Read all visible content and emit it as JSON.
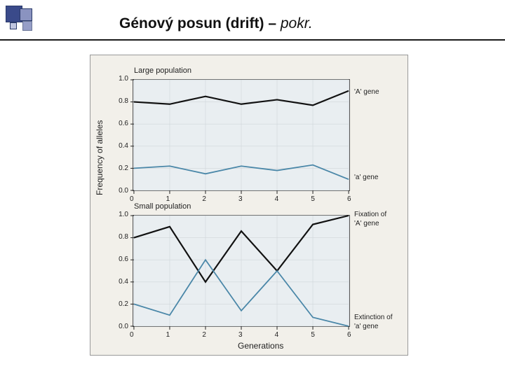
{
  "title_bold": "Génový posun (drift)",
  "title_sep": " – ",
  "title_italic": "pokr.",
  "ylabel": "Frequency of alleles",
  "xlabel": "Generations",
  "panel1": {
    "title": "Large population",
    "ylim": [
      0.0,
      1.0
    ],
    "yticks": [
      0.0,
      0.2,
      0.4,
      0.6,
      0.8,
      1.0
    ],
    "yticklabels": [
      "0.0",
      "0.2",
      "0.4",
      "0.6",
      "0.8",
      "1.0"
    ],
    "xlim": [
      0,
      6
    ],
    "xticks": [
      0,
      1,
      2,
      3,
      4,
      5,
      6
    ],
    "xticklabels": [
      "0",
      "1",
      "2",
      "3",
      "4",
      "5",
      "6"
    ],
    "grid_color": "#d0d6da",
    "background_color": "#e9eef1",
    "series": [
      {
        "name": "A_gene",
        "color": "#111111",
        "width": 2.2,
        "x": [
          0,
          1,
          2,
          3,
          4,
          5,
          6
        ],
        "y": [
          0.8,
          0.78,
          0.85,
          0.78,
          0.82,
          0.77,
          0.9
        ]
      },
      {
        "name": "a_gene",
        "color": "#4a87a8",
        "width": 1.8,
        "x": [
          0,
          1,
          2,
          3,
          4,
          5,
          6
        ],
        "y": [
          0.2,
          0.22,
          0.15,
          0.22,
          0.18,
          0.23,
          0.1
        ]
      }
    ],
    "right_labels": [
      {
        "text": "'A' gene",
        "y": 0.88
      },
      {
        "text": "'a' gene",
        "y": 0.12
      }
    ]
  },
  "panel2": {
    "title": "Small population",
    "ylim": [
      0.0,
      1.0
    ],
    "yticks": [
      0.0,
      0.2,
      0.4,
      0.6,
      0.8,
      1.0
    ],
    "yticklabels": [
      "0.0",
      "0.2",
      "0.4",
      "0.6",
      "0.8",
      "1.0"
    ],
    "xlim": [
      0,
      6
    ],
    "xticks": [
      0,
      1,
      2,
      3,
      4,
      5,
      6
    ],
    "xticklabels": [
      "0",
      "1",
      "2",
      "3",
      "4",
      "5",
      "6"
    ],
    "grid_color": "#d0d6da",
    "background_color": "#e9eef1",
    "series": [
      {
        "name": "A_gene",
        "color": "#111111",
        "width": 2.2,
        "x": [
          0,
          1,
          2,
          3,
          4,
          5,
          6
        ],
        "y": [
          0.8,
          0.9,
          0.4,
          0.86,
          0.5,
          0.92,
          1.0
        ]
      },
      {
        "name": "a_gene",
        "color": "#4a87a8",
        "width": 1.8,
        "x": [
          0,
          1,
          2,
          3,
          4,
          5,
          6
        ],
        "y": [
          0.2,
          0.1,
          0.6,
          0.14,
          0.5,
          0.08,
          0.0
        ]
      }
    ],
    "right_labels": [
      {
        "text": "Fixation of",
        "y": 1.0
      },
      {
        "text": "'A' gene",
        "y": 0.92
      },
      {
        "text": "Extinction of",
        "y": 0.08
      },
      {
        "text": "'a' gene",
        "y": 0.0
      }
    ]
  }
}
